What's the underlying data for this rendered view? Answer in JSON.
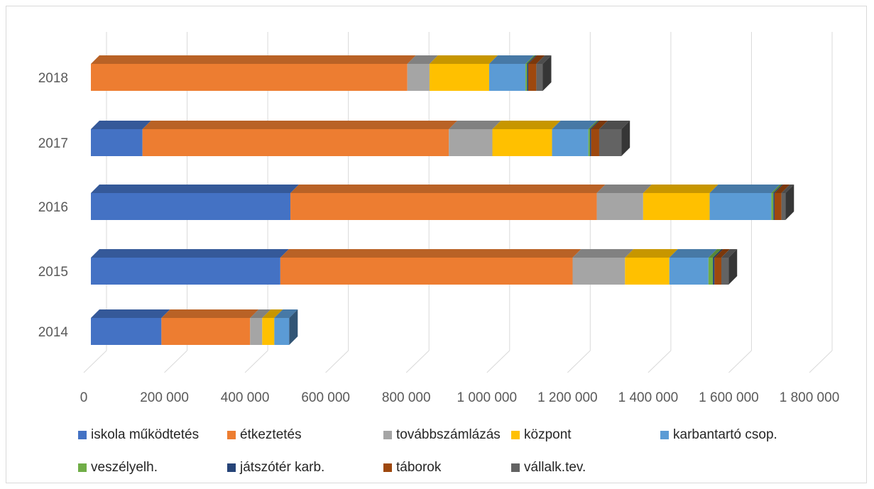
{
  "chart_data": {
    "type": "bar",
    "orientation": "horizontal",
    "stacked": true,
    "style": "3d",
    "title": "",
    "xlabel": "",
    "ylabel": "",
    "categories": [
      "2014",
      "2015",
      "2016",
      "2017",
      "2018"
    ],
    "xlim": [
      0,
      1800000
    ],
    "x_ticks": [
      0,
      200000,
      400000,
      600000,
      800000,
      1000000,
      1200000,
      1400000,
      1600000,
      1800000
    ],
    "x_tick_labels": [
      "0",
      "200 000",
      "400 000",
      "600 000",
      "800 000",
      "1 000 000",
      "1 200 000",
      "1 400 000",
      "1 600 000",
      "1 800 000"
    ],
    "grid": true,
    "legend_position": "bottom",
    "series": [
      {
        "name": "iskola működtetés",
        "color": "#4472C4",
        "values": [
          175000,
          470000,
          495000,
          128000,
          0
        ]
      },
      {
        "name": "étkeztetés",
        "color": "#ED7D31",
        "values": [
          220000,
          725000,
          760000,
          760000,
          785000
        ]
      },
      {
        "name": "továbbszámlázás",
        "color": "#A5A5A5",
        "values": [
          30000,
          130000,
          115000,
          108000,
          55000
        ]
      },
      {
        "name": "központ",
        "color": "#FFC000",
        "values": [
          30000,
          110000,
          165000,
          148000,
          148000
        ]
      },
      {
        "name": "karbantartó csop.",
        "color": "#5B9BD5",
        "values": [
          37000,
          97000,
          153000,
          90000,
          90000
        ]
      },
      {
        "name": "veszélyelh.",
        "color": "#70AD47",
        "values": [
          0,
          11000,
          5000,
          4000,
          4000
        ]
      },
      {
        "name": "játszótér karb.",
        "color": "#264478",
        "values": [
          0,
          4000,
          3000,
          3000,
          3000
        ]
      },
      {
        "name": "táborok",
        "color": "#9E480E",
        "values": [
          0,
          17000,
          17000,
          20000,
          20000
        ]
      },
      {
        "name": "vállalk.tev.",
        "color": "#636363",
        "values": [
          0,
          18000,
          10000,
          55000,
          16000
        ]
      }
    ]
  }
}
